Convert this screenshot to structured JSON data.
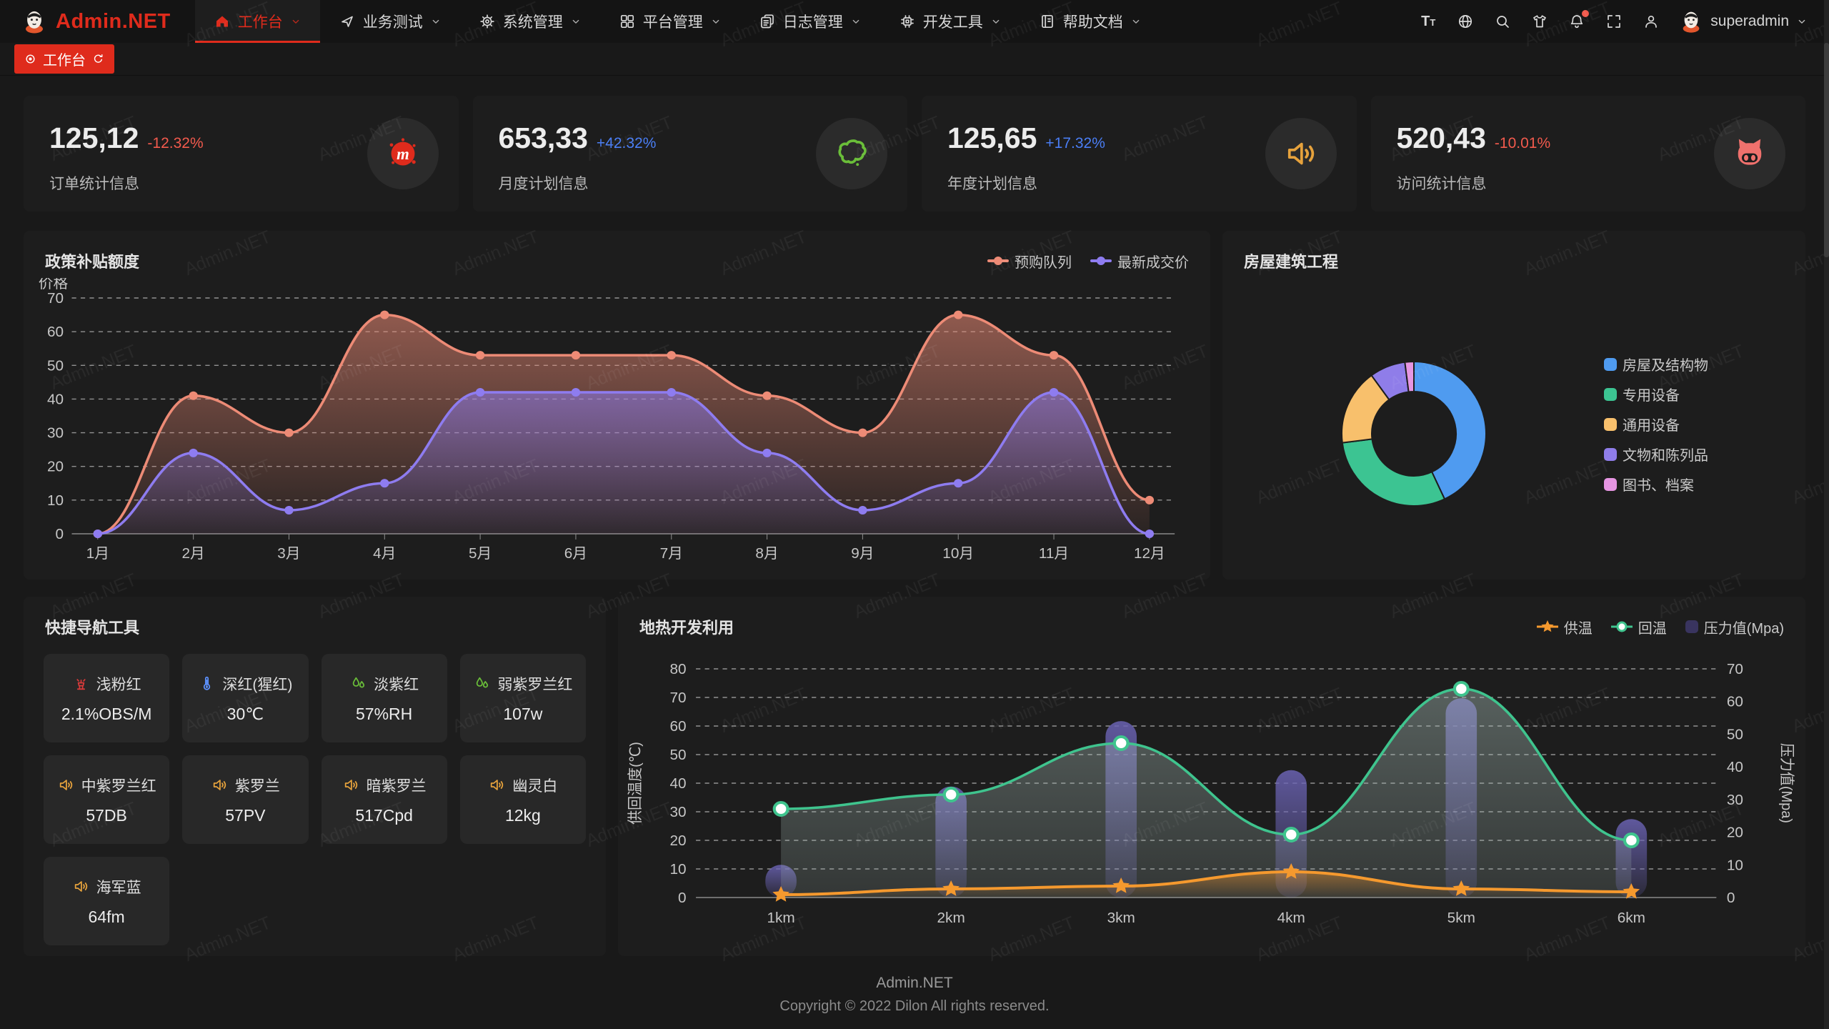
{
  "theme": {
    "brand_red": "#df2b1c",
    "up_blue": "#4a7ef5",
    "down_red": "#f25a4d",
    "panel_bg": "#1d1d1d"
  },
  "watermark": {
    "text": "Admin.NET"
  },
  "brand": {
    "name": "Admin.NET"
  },
  "nav": {
    "items": [
      {
        "label": "工作台",
        "icon": "home-icon",
        "active": true
      },
      {
        "label": "业务测试",
        "icon": "nav-arrow-icon",
        "active": false
      },
      {
        "label": "系统管理",
        "icon": "gear-icon",
        "active": false
      },
      {
        "label": "平台管理",
        "icon": "grid-icon",
        "active": false
      },
      {
        "label": "日志管理",
        "icon": "document-icon",
        "active": false
      },
      {
        "label": "开发工具",
        "icon": "chip-icon",
        "active": false
      },
      {
        "label": "帮助文档",
        "icon": "book-icon",
        "active": false
      }
    ],
    "right_icons": [
      {
        "name": "font-size-icon"
      },
      {
        "name": "language-icon"
      },
      {
        "name": "search-icon"
      },
      {
        "name": "theme-icon"
      },
      {
        "name": "notification-icon",
        "badge": true
      },
      {
        "name": "fullscreen-icon"
      },
      {
        "name": "profile-icon"
      }
    ],
    "user": {
      "name": "superadmin"
    }
  },
  "tabbar": {
    "tabs": [
      {
        "label": "工作台",
        "active": true
      }
    ]
  },
  "stats": [
    {
      "value": "125,12",
      "delta": "-12.32%",
      "trend": "down",
      "label": "订单统计信息",
      "icon": "paint-splat-icon",
      "icon_color": "#df2b1c"
    },
    {
      "value": "653,33",
      "delta": "+42.32%",
      "trend": "up",
      "label": "月度计划信息",
      "icon": "china-map-icon",
      "icon_color": "#6abe39"
    },
    {
      "value": "125,65",
      "delta": "+17.32%",
      "trend": "up",
      "label": "年度计划信息",
      "icon": "speaker-icon",
      "icon_color": "#e6a23c"
    },
    {
      "value": "520,43",
      "delta": "-10.01%",
      "trend": "down",
      "label": "访问统计信息",
      "icon": "cat-face-icon",
      "icon_color": "#f0716d"
    }
  ],
  "chart_data": [
    {
      "type": "area",
      "title": "政策补贴额度",
      "ylabel": "价格",
      "ylim": [
        0,
        70
      ],
      "grid": "dashed",
      "legend_position": "top-right",
      "categories": [
        "1月",
        "2月",
        "3月",
        "4月",
        "5月",
        "6月",
        "7月",
        "8月",
        "9月",
        "10月",
        "11月",
        "12月"
      ],
      "series": [
        {
          "name": "预购队列",
          "color": "#ed8b76",
          "values": [
            0,
            41,
            30,
            65,
            53,
            53,
            53,
            41,
            30,
            65,
            53,
            10
          ]
        },
        {
          "name": "最新成交价",
          "color": "#8e7cf0",
          "values": [
            0,
            24,
            7,
            15,
            42,
            42,
            42,
            24,
            7,
            15,
            42,
            0
          ]
        }
      ]
    },
    {
      "type": "pie",
      "subtype": "donut",
      "title": "房屋建筑工程",
      "items": [
        {
          "name": "房屋及结构物",
          "value": 43,
          "color": "#4f9bf0"
        },
        {
          "name": "专用设备",
          "value": 30,
          "color": "#3cc492"
        },
        {
          "name": "通用设备",
          "value": 17,
          "color": "#f8c06c"
        },
        {
          "name": "文物和陈列品",
          "value": 8,
          "color": "#8f7de9"
        },
        {
          "name": "图书、档案",
          "value": 2,
          "color": "#e695e2"
        }
      ]
    },
    {
      "type": "mixed-line-bar",
      "title": "地热开发利用",
      "categories": [
        "1km",
        "2km",
        "3km",
        "4km",
        "5km",
        "6km"
      ],
      "left_axis": {
        "label": "供回温度(℃)",
        "range": [
          0,
          80
        ],
        "ticks": [
          0,
          10,
          20,
          30,
          40,
          50,
          60,
          70,
          80
        ]
      },
      "right_axis": {
        "label": "压力值(Mpa)",
        "range": [
          0,
          70
        ],
        "ticks": [
          0,
          10,
          20,
          30,
          40,
          50,
          60,
          70
        ]
      },
      "series": [
        {
          "name": "供温",
          "type": "line",
          "axis": "left",
          "marker": "star",
          "color": "#f5992e",
          "values": [
            1,
            3,
            4,
            9,
            3,
            2
          ]
        },
        {
          "name": "回温",
          "type": "line",
          "axis": "left",
          "marker": "circle",
          "color": "#3fc48e",
          "values": [
            31,
            36,
            54,
            22,
            73,
            20
          ]
        },
        {
          "name": "压力值(Mpa)",
          "type": "bar",
          "axis": "right",
          "color": "#6b63b4",
          "values": [
            10,
            34,
            54,
            39,
            61,
            24
          ]
        }
      ]
    }
  ],
  "quick_nav": {
    "title": "快捷导航工具",
    "items": [
      {
        "name": "浅粉红",
        "value": "2.1%OBS/M",
        "icon": "fountain-icon",
        "icon_color": "#d93a3a"
      },
      {
        "name": "深红(猩红)",
        "value": "30℃",
        "icon": "thermometer-icon",
        "icon_color": "#5b8ff9"
      },
      {
        "name": "淡紫红",
        "value": "57%RH",
        "icon": "water-drops-icon",
        "icon_color": "#6abe39"
      },
      {
        "name": "弱紫罗兰红",
        "value": "107w",
        "icon": "water-drops-icon",
        "icon_color": "#6abe39"
      },
      {
        "name": "中紫罗兰红",
        "value": "57DB",
        "icon": "speaker-icon",
        "icon_color": "#e6a23c"
      },
      {
        "name": "紫罗兰",
        "value": "57PV",
        "icon": "speaker-icon",
        "icon_color": "#e6a23c"
      },
      {
        "name": "暗紫罗兰",
        "value": "517Cpd",
        "icon": "speaker-icon",
        "icon_color": "#e6a23c"
      },
      {
        "name": "幽灵白",
        "value": "12kg",
        "icon": "speaker-icon",
        "icon_color": "#e6a23c"
      },
      {
        "name": "海军蓝",
        "value": "64fm",
        "icon": "speaker-icon",
        "icon_color": "#e6a23c"
      }
    ]
  },
  "footer": {
    "line1": "Admin.NET",
    "line2": "Copyright © 2022 Dilon All rights reserved."
  }
}
